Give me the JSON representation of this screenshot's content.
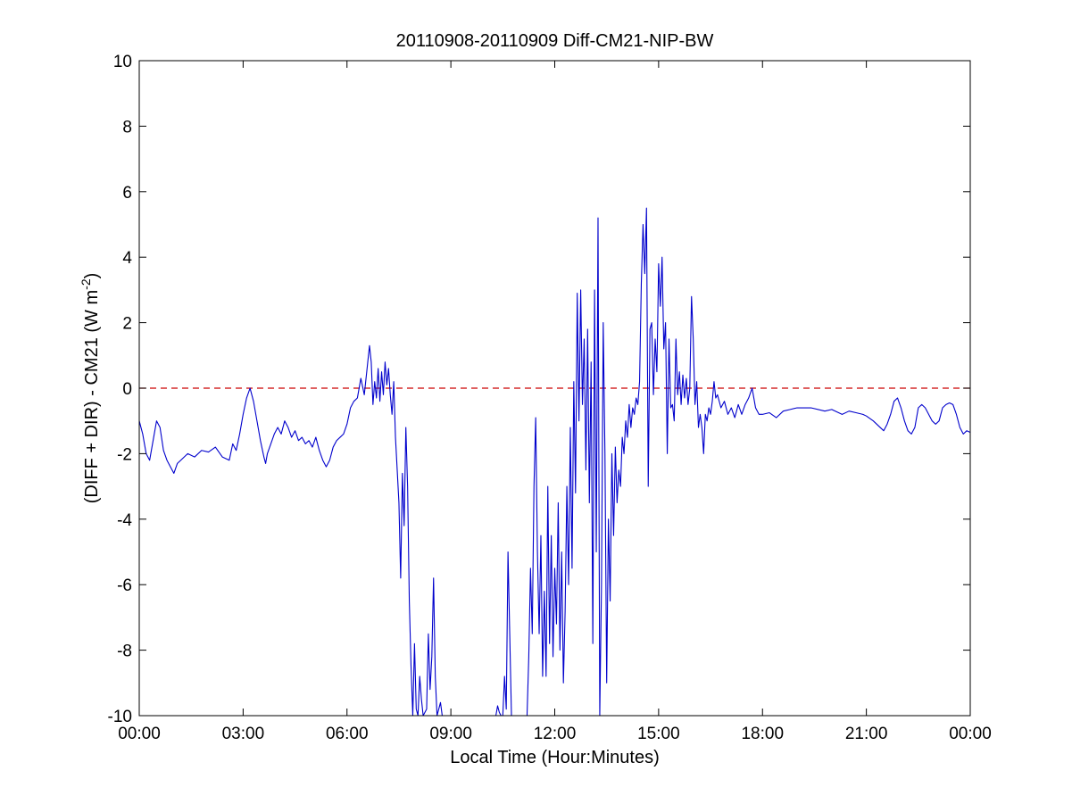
{
  "chart_data": {
    "type": "line",
    "title": "20110908-20110909 Diff-CM21-NIP-BW",
    "xlabel": "Local Time (Hour:Minutes)",
    "ylabel": "(DIFF + DIR) - CM21 (W m",
    "ylabel_superscript": "-2",
    "ylabel_suffix": ")",
    "x_unit": "hours since 00:00",
    "xlim": [
      0,
      24
    ],
    "ylim": [
      -10,
      10
    ],
    "x_ticks": [
      0,
      3,
      6,
      9,
      12,
      15,
      18,
      21,
      24
    ],
    "x_tick_labels": [
      "00:00",
      "03:00",
      "06:00",
      "09:00",
      "12:00",
      "15:00",
      "18:00",
      "21:00",
      "00:00"
    ],
    "y_ticks": [
      -10,
      -8,
      -6,
      -4,
      -2,
      0,
      2,
      4,
      6,
      8,
      10
    ],
    "y_tick_labels": [
      "-10",
      "-8",
      "-6",
      "-4",
      "-2",
      "0",
      "2",
      "4",
      "6",
      "8",
      "10"
    ],
    "grid": false,
    "legend": "none",
    "reference_line": {
      "y": 0,
      "style": "dashed",
      "color": "#cc0000"
    },
    "series": [
      {
        "color": "#0000cc",
        "points": [
          [
            0.0,
            -1.0
          ],
          [
            0.1,
            -1.4
          ],
          [
            0.2,
            -2.0
          ],
          [
            0.3,
            -2.2
          ],
          [
            0.4,
            -1.6
          ],
          [
            0.5,
            -1.0
          ],
          [
            0.6,
            -1.2
          ],
          [
            0.7,
            -1.9
          ],
          [
            0.8,
            -2.2
          ],
          [
            0.9,
            -2.4
          ],
          [
            1.0,
            -2.6
          ],
          [
            1.1,
            -2.3
          ],
          [
            1.2,
            -2.2
          ],
          [
            1.4,
            -2.0
          ],
          [
            1.6,
            -2.1
          ],
          [
            1.8,
            -1.9
          ],
          [
            2.0,
            -1.95
          ],
          [
            2.2,
            -1.8
          ],
          [
            2.4,
            -2.1
          ],
          [
            2.6,
            -2.2
          ],
          [
            2.7,
            -1.7
          ],
          [
            2.8,
            -1.9
          ],
          [
            2.9,
            -1.4
          ],
          [
            3.0,
            -0.8
          ],
          [
            3.1,
            -0.3
          ],
          [
            3.2,
            0.0
          ],
          [
            3.3,
            -0.4
          ],
          [
            3.4,
            -1.0
          ],
          [
            3.5,
            -1.6
          ],
          [
            3.6,
            -2.1
          ],
          [
            3.65,
            -2.3
          ],
          [
            3.7,
            -2.0
          ],
          [
            3.8,
            -1.7
          ],
          [
            3.9,
            -1.4
          ],
          [
            4.0,
            -1.2
          ],
          [
            4.1,
            -1.4
          ],
          [
            4.2,
            -1.0
          ],
          [
            4.3,
            -1.2
          ],
          [
            4.4,
            -1.5
          ],
          [
            4.5,
            -1.3
          ],
          [
            4.6,
            -1.6
          ],
          [
            4.7,
            -1.5
          ],
          [
            4.8,
            -1.7
          ],
          [
            4.9,
            -1.6
          ],
          [
            5.0,
            -1.8
          ],
          [
            5.1,
            -1.5
          ],
          [
            5.2,
            -1.9
          ],
          [
            5.3,
            -2.2
          ],
          [
            5.4,
            -2.4
          ],
          [
            5.5,
            -2.2
          ],
          [
            5.6,
            -1.8
          ],
          [
            5.7,
            -1.6
          ],
          [
            5.8,
            -1.5
          ],
          [
            5.9,
            -1.4
          ],
          [
            6.0,
            -1.1
          ],
          [
            6.1,
            -0.6
          ],
          [
            6.2,
            -0.4
          ],
          [
            6.3,
            -0.3
          ],
          [
            6.4,
            0.3
          ],
          [
            6.5,
            -0.2
          ],
          [
            6.6,
            0.8
          ],
          [
            6.65,
            1.3
          ],
          [
            6.7,
            0.8
          ],
          [
            6.75,
            -0.5
          ],
          [
            6.8,
            0.2
          ],
          [
            6.85,
            -0.3
          ],
          [
            6.9,
            0.6
          ],
          [
            6.95,
            -0.4
          ],
          [
            7.0,
            0.5
          ],
          [
            7.05,
            -0.2
          ],
          [
            7.1,
            0.8
          ],
          [
            7.15,
            0.1
          ],
          [
            7.2,
            0.6
          ],
          [
            7.25,
            -0.2
          ],
          [
            7.3,
            -0.8
          ],
          [
            7.35,
            0.2
          ],
          [
            7.4,
            -1.5
          ],
          [
            7.45,
            -2.5
          ],
          [
            7.5,
            -3.5
          ],
          [
            7.55,
            -5.8
          ],
          [
            7.6,
            -2.6
          ],
          [
            7.65,
            -4.2
          ],
          [
            7.7,
            -1.2
          ],
          [
            7.75,
            -3.0
          ],
          [
            7.8,
            -6.5
          ],
          [
            7.85,
            -8.5
          ],
          [
            7.9,
            -10.0
          ],
          [
            7.95,
            -7.8
          ],
          [
            8.0,
            -9.8
          ],
          [
            8.05,
            -10.0
          ],
          [
            8.1,
            -8.8
          ],
          [
            8.15,
            -9.5
          ],
          [
            8.2,
            -10.0
          ],
          [
            8.3,
            -9.8
          ],
          [
            8.35,
            -7.5
          ],
          [
            8.4,
            -9.2
          ],
          [
            8.45,
            -8.2
          ],
          [
            8.5,
            -5.8
          ],
          [
            8.55,
            -8.8
          ],
          [
            8.6,
            -10.0
          ],
          [
            8.7,
            -9.6
          ],
          [
            8.75,
            -10.0
          ],
          [
            8.8,
            -10.0
          ],
          [
            8.85,
            -10.0
          ],
          [
            10.3,
            -10.0
          ],
          [
            10.35,
            -9.7
          ],
          [
            10.4,
            -9.9
          ],
          [
            10.45,
            -10.0
          ],
          [
            10.5,
            -10.0
          ],
          [
            10.55,
            -8.8
          ],
          [
            10.6,
            -9.8
          ],
          [
            10.65,
            -5.0
          ],
          [
            10.7,
            -7.5
          ],
          [
            10.75,
            -10.0
          ],
          [
            11.2,
            -10.0
          ],
          [
            11.25,
            -8.2
          ],
          [
            11.3,
            -5.5
          ],
          [
            11.35,
            -7.5
          ],
          [
            11.4,
            -3.0
          ],
          [
            11.45,
            -0.9
          ],
          [
            11.5,
            -5.0
          ],
          [
            11.55,
            -7.5
          ],
          [
            11.6,
            -4.5
          ],
          [
            11.65,
            -8.8
          ],
          [
            11.7,
            -6.2
          ],
          [
            11.75,
            -8.8
          ],
          [
            11.8,
            -3.0
          ],
          [
            11.85,
            -7.8
          ],
          [
            11.9,
            -4.5
          ],
          [
            11.95,
            -8.2
          ],
          [
            12.0,
            -5.5
          ],
          [
            12.05,
            -7.2
          ],
          [
            12.1,
            -3.5
          ],
          [
            12.15,
            -8.0
          ],
          [
            12.2,
            -5.0
          ],
          [
            12.25,
            -9.0
          ],
          [
            12.3,
            -6.8
          ],
          [
            12.35,
            -3.0
          ],
          [
            12.4,
            -6.0
          ],
          [
            12.45,
            -1.2
          ],
          [
            12.5,
            -5.5
          ],
          [
            12.55,
            0.2
          ],
          [
            12.6,
            -3.2
          ],
          [
            12.65,
            2.9
          ],
          [
            12.7,
            -1.0
          ],
          [
            12.75,
            3.0
          ],
          [
            12.8,
            -0.5
          ],
          [
            12.85,
            1.5
          ],
          [
            12.9,
            -2.5
          ],
          [
            12.95,
            1.8
          ],
          [
            13.0,
            -3.5
          ],
          [
            13.05,
            0.8
          ],
          [
            13.1,
            -7.8
          ],
          [
            13.15,
            3.0
          ],
          [
            13.2,
            -5.0
          ],
          [
            13.25,
            5.2
          ],
          [
            13.3,
            -10.0
          ],
          [
            13.35,
            -6.0
          ],
          [
            13.4,
            2.0
          ],
          [
            13.45,
            -2.0
          ],
          [
            13.5,
            -9.0
          ],
          [
            13.55,
            -4.0
          ],
          [
            13.6,
            -6.5
          ],
          [
            13.65,
            -2.0
          ],
          [
            13.7,
            -4.5
          ],
          [
            13.75,
            -1.8
          ],
          [
            13.8,
            -3.5
          ],
          [
            13.85,
            -2.5
          ],
          [
            13.9,
            -3.0
          ],
          [
            13.95,
            -1.5
          ],
          [
            14.0,
            -2.0
          ],
          [
            14.05,
            -1.0
          ],
          [
            14.1,
            -1.5
          ],
          [
            14.15,
            -0.5
          ],
          [
            14.2,
            -1.2
          ],
          [
            14.25,
            -0.6
          ],
          [
            14.3,
            -0.8
          ],
          [
            14.35,
            -0.3
          ],
          [
            14.4,
            -0.5
          ],
          [
            14.45,
            0.2
          ],
          [
            14.5,
            3.2
          ],
          [
            14.55,
            5.0
          ],
          [
            14.6,
            3.5
          ],
          [
            14.65,
            5.5
          ],
          [
            14.7,
            -3.0
          ],
          [
            14.75,
            1.8
          ],
          [
            14.8,
            2.0
          ],
          [
            14.85,
            -0.2
          ],
          [
            14.9,
            1.5
          ],
          [
            14.95,
            0.5
          ],
          [
            15.0,
            3.8
          ],
          [
            15.05,
            2.5
          ],
          [
            15.1,
            4.0
          ],
          [
            15.15,
            1.2
          ],
          [
            15.2,
            2.0
          ],
          [
            15.25,
            -2.0
          ],
          [
            15.3,
            1.5
          ],
          [
            15.35,
            -0.6
          ],
          [
            15.4,
            -0.5
          ],
          [
            15.45,
            -1.0
          ],
          [
            15.5,
            1.5
          ],
          [
            15.55,
            -0.2
          ],
          [
            15.6,
            0.5
          ],
          [
            15.65,
            -0.5
          ],
          [
            15.7,
            0.4
          ],
          [
            15.75,
            -0.3
          ],
          [
            15.8,
            0.3
          ],
          [
            15.85,
            -0.5
          ],
          [
            15.9,
            0.0
          ],
          [
            15.95,
            2.8
          ],
          [
            16.0,
            1.5
          ],
          [
            16.05,
            -0.5
          ],
          [
            16.1,
            0.2
          ],
          [
            16.15,
            -1.2
          ],
          [
            16.2,
            -0.8
          ],
          [
            16.25,
            -1.2
          ],
          [
            16.3,
            -2.0
          ],
          [
            16.35,
            -0.8
          ],
          [
            16.4,
            -1.0
          ],
          [
            16.45,
            -0.6
          ],
          [
            16.5,
            -0.8
          ],
          [
            16.55,
            -0.4
          ],
          [
            16.6,
            0.2
          ],
          [
            16.65,
            -0.3
          ],
          [
            16.7,
            -0.2
          ],
          [
            16.8,
            -0.6
          ],
          [
            16.9,
            -0.4
          ],
          [
            17.0,
            -0.8
          ],
          [
            17.1,
            -0.6
          ],
          [
            17.2,
            -0.9
          ],
          [
            17.3,
            -0.5
          ],
          [
            17.4,
            -0.8
          ],
          [
            17.5,
            -0.5
          ],
          [
            17.6,
            -0.3
          ],
          [
            17.7,
            0.0
          ],
          [
            17.8,
            -0.6
          ],
          [
            17.9,
            -0.8
          ],
          [
            18.0,
            -0.8
          ],
          [
            18.2,
            -0.75
          ],
          [
            18.4,
            -0.9
          ],
          [
            18.6,
            -0.7
          ],
          [
            18.8,
            -0.65
          ],
          [
            19.0,
            -0.6
          ],
          [
            19.4,
            -0.6
          ],
          [
            19.8,
            -0.7
          ],
          [
            20.0,
            -0.65
          ],
          [
            20.3,
            -0.8
          ],
          [
            20.5,
            -0.7
          ],
          [
            20.7,
            -0.75
          ],
          [
            20.9,
            -0.8
          ],
          [
            21.0,
            -0.85
          ],
          [
            21.2,
            -1.0
          ],
          [
            21.4,
            -1.2
          ],
          [
            21.5,
            -1.3
          ],
          [
            21.6,
            -1.1
          ],
          [
            21.7,
            -0.8
          ],
          [
            21.8,
            -0.4
          ],
          [
            21.9,
            -0.3
          ],
          [
            22.0,
            -0.6
          ],
          [
            22.1,
            -1.0
          ],
          [
            22.2,
            -1.3
          ],
          [
            22.3,
            -1.4
          ],
          [
            22.4,
            -1.2
          ],
          [
            22.5,
            -0.6
          ],
          [
            22.6,
            -0.5
          ],
          [
            22.7,
            -0.6
          ],
          [
            22.8,
            -0.8
          ],
          [
            22.9,
            -1.0
          ],
          [
            23.0,
            -1.1
          ],
          [
            23.1,
            -1.0
          ],
          [
            23.2,
            -0.6
          ],
          [
            23.3,
            -0.5
          ],
          [
            23.4,
            -0.45
          ],
          [
            23.5,
            -0.5
          ],
          [
            23.6,
            -0.8
          ],
          [
            23.7,
            -1.2
          ],
          [
            23.8,
            -1.4
          ],
          [
            23.9,
            -1.3
          ],
          [
            24.0,
            -1.35
          ]
        ]
      }
    ]
  }
}
